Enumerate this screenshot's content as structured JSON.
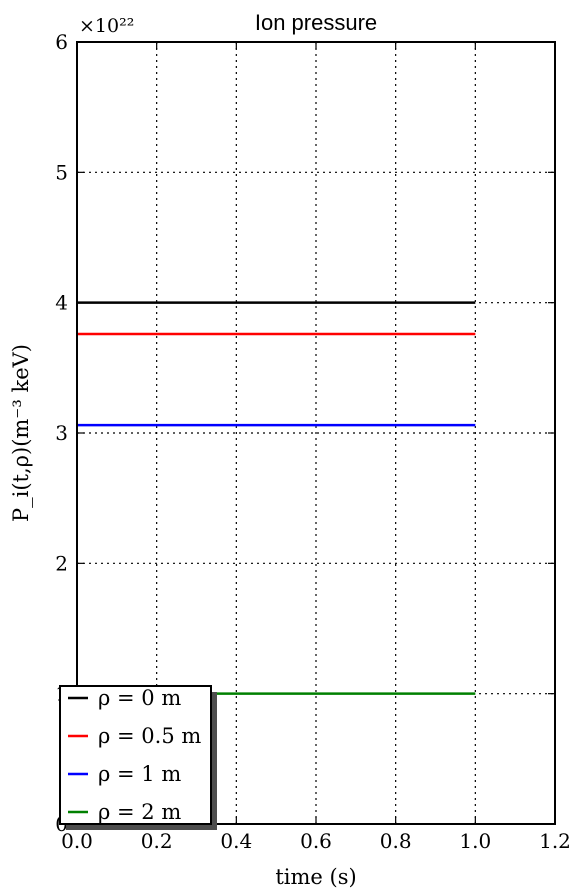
{
  "chart_data": {
    "type": "line",
    "title": "Ion pressure",
    "xlabel": "time (s)",
    "ylabel": "P_i(t,ρ)(m⁻³ keV)",
    "y_offset_label": "×10²²",
    "xlim": [
      0.0,
      1.2
    ],
    "ylim": [
      0,
      6
    ],
    "x_ticks": [
      0.0,
      0.2,
      0.4,
      0.6,
      0.8,
      1.0,
      1.2
    ],
    "x_tick_labels": [
      "0.0",
      "0.2",
      "0.4",
      "0.6",
      "0.8",
      "1.0",
      "1.2"
    ],
    "y_ticks": [
      0,
      1,
      2,
      3,
      4,
      5,
      6
    ],
    "y_tick_labels": [
      "0",
      "1",
      "2",
      "3",
      "4",
      "5",
      "6"
    ],
    "grid": true,
    "grid_style": "dotted",
    "legend_position": "bottom-left",
    "series": [
      {
        "name": "ρ = 0 m",
        "color": "#000000",
        "x": [
          0.0,
          1.0
        ],
        "y": [
          4.0,
          4.0
        ]
      },
      {
        "name": "ρ = 0.5 m",
        "color": "#ff0000",
        "x": [
          0.0,
          1.0
        ],
        "y": [
          3.76,
          3.76
        ]
      },
      {
        "name": "ρ = 1 m",
        "color": "#0000ff",
        "x": [
          0.0,
          1.0
        ],
        "y": [
          3.06,
          3.06
        ]
      },
      {
        "name": "ρ = 2 m",
        "color": "#008000",
        "x": [
          0.0,
          1.0
        ],
        "y": [
          1.0,
          1.0
        ]
      }
    ]
  }
}
